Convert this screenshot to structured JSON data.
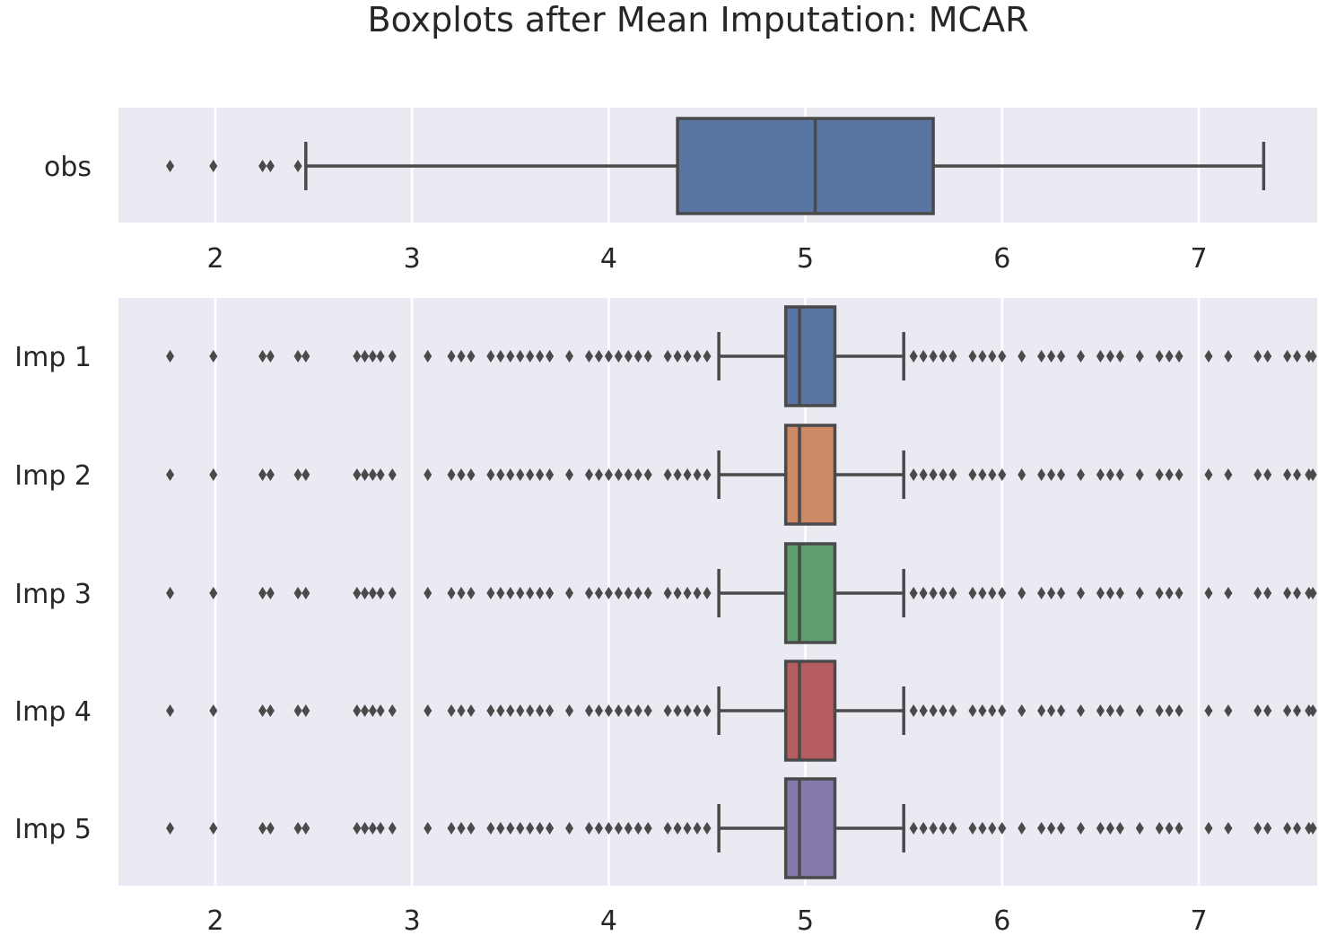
{
  "title": "Boxplots after Mean Imputation: MCAR",
  "colors": {
    "panel_bg": "#EAEAF2",
    "grid": "#FFFFFF",
    "edge": "#4A4A4A",
    "blue": "#5875A4",
    "orange": "#CC8963",
    "green": "#5F9E6E",
    "red": "#B55D60",
    "purple": "#857AAB"
  },
  "chart_data": [
    {
      "type": "boxplot",
      "orientation": "horizontal",
      "xlim": [
        1.5,
        7.6
      ],
      "xticks": [
        "2",
        "3",
        "4",
        "5",
        "6",
        "7"
      ],
      "xtick_values": [
        2,
        3,
        4,
        5,
        6,
        7
      ],
      "grid": true,
      "series": [
        {
          "name": "obs",
          "color": "#5875A4",
          "whisker_low": 2.46,
          "q1": 4.35,
          "median": 5.05,
          "q3": 5.65,
          "whisker_high": 7.33,
          "outliers": [
            1.77,
            1.99,
            2.24,
            2.28,
            2.42
          ]
        }
      ]
    },
    {
      "type": "boxplot",
      "orientation": "horizontal",
      "xlim": [
        1.5,
        7.6
      ],
      "xticks": [
        "2",
        "3",
        "4",
        "5",
        "6",
        "7"
      ],
      "xtick_values": [
        2,
        3,
        4,
        5,
        6,
        7
      ],
      "grid": true,
      "series": [
        {
          "name": "Imp 1",
          "color": "#5875A4",
          "whisker_low": 4.56,
          "q1": 4.9,
          "median": 4.97,
          "q3": 5.15,
          "whisker_high": 5.5,
          "outliers": [
            1.77,
            1.99,
            2.24,
            2.28,
            2.42,
            2.46,
            2.72,
            2.76,
            2.8,
            2.84,
            2.9,
            3.08,
            3.2,
            3.25,
            3.3,
            3.4,
            3.45,
            3.5,
            3.55,
            3.6,
            3.65,
            3.7,
            3.8,
            3.9,
            3.95,
            4.0,
            4.05,
            4.1,
            4.15,
            4.2,
            4.3,
            4.35,
            4.4,
            4.45,
            4.5,
            5.55,
            5.6,
            5.65,
            5.7,
            5.75,
            5.85,
            5.9,
            5.95,
            6.0,
            6.1,
            6.2,
            6.25,
            6.3,
            6.4,
            6.5,
            6.55,
            6.6,
            6.7,
            6.8,
            6.85,
            6.9,
            7.05,
            7.15,
            7.3,
            7.35,
            7.45,
            7.5,
            7.56,
            7.58
          ]
        },
        {
          "name": "Imp 2",
          "color": "#CC8963",
          "whisker_low": 4.56,
          "q1": 4.9,
          "median": 4.97,
          "q3": 5.15,
          "whisker_high": 5.5,
          "outliers": [
            1.77,
            1.99,
            2.24,
            2.28,
            2.42,
            2.46,
            2.72,
            2.76,
            2.8,
            2.84,
            2.9,
            3.08,
            3.2,
            3.25,
            3.3,
            3.4,
            3.45,
            3.5,
            3.55,
            3.6,
            3.65,
            3.7,
            3.8,
            3.9,
            3.95,
            4.0,
            4.05,
            4.1,
            4.15,
            4.2,
            4.3,
            4.35,
            4.4,
            4.45,
            4.5,
            5.55,
            5.6,
            5.65,
            5.7,
            5.75,
            5.85,
            5.9,
            5.95,
            6.0,
            6.1,
            6.2,
            6.25,
            6.3,
            6.4,
            6.5,
            6.55,
            6.6,
            6.7,
            6.8,
            6.85,
            6.9,
            7.05,
            7.15,
            7.3,
            7.35,
            7.45,
            7.5,
            7.56,
            7.58
          ]
        },
        {
          "name": "Imp 3",
          "color": "#5F9E6E",
          "whisker_low": 4.56,
          "q1": 4.9,
          "median": 4.97,
          "q3": 5.15,
          "whisker_high": 5.5,
          "outliers": [
            1.77,
            1.99,
            2.24,
            2.28,
            2.42,
            2.46,
            2.72,
            2.76,
            2.8,
            2.84,
            2.9,
            3.08,
            3.2,
            3.25,
            3.3,
            3.4,
            3.45,
            3.5,
            3.55,
            3.6,
            3.65,
            3.7,
            3.8,
            3.9,
            3.95,
            4.0,
            4.05,
            4.1,
            4.15,
            4.2,
            4.3,
            4.35,
            4.4,
            4.45,
            4.5,
            5.55,
            5.6,
            5.65,
            5.7,
            5.75,
            5.85,
            5.9,
            5.95,
            6.0,
            6.1,
            6.2,
            6.25,
            6.3,
            6.4,
            6.5,
            6.55,
            6.6,
            6.7,
            6.8,
            6.85,
            6.9,
            7.05,
            7.15,
            7.3,
            7.35,
            7.45,
            7.5,
            7.56,
            7.58
          ]
        },
        {
          "name": "Imp 4",
          "color": "#B55D60",
          "whisker_low": 4.56,
          "q1": 4.9,
          "median": 4.97,
          "q3": 5.15,
          "whisker_high": 5.5,
          "outliers": [
            1.77,
            1.99,
            2.24,
            2.28,
            2.42,
            2.46,
            2.72,
            2.76,
            2.8,
            2.84,
            2.9,
            3.08,
            3.2,
            3.25,
            3.3,
            3.4,
            3.45,
            3.5,
            3.55,
            3.6,
            3.65,
            3.7,
            3.8,
            3.9,
            3.95,
            4.0,
            4.05,
            4.1,
            4.15,
            4.2,
            4.3,
            4.35,
            4.4,
            4.45,
            4.5,
            5.55,
            5.6,
            5.65,
            5.7,
            5.75,
            5.85,
            5.9,
            5.95,
            6.0,
            6.1,
            6.2,
            6.25,
            6.3,
            6.4,
            6.5,
            6.55,
            6.6,
            6.7,
            6.8,
            6.85,
            6.9,
            7.05,
            7.15,
            7.3,
            7.35,
            7.45,
            7.5,
            7.56,
            7.58
          ]
        },
        {
          "name": "Imp 5",
          "color": "#857AAB",
          "whisker_low": 4.56,
          "q1": 4.9,
          "median": 4.97,
          "q3": 5.15,
          "whisker_high": 5.5,
          "outliers": [
            1.77,
            1.99,
            2.24,
            2.28,
            2.42,
            2.46,
            2.72,
            2.76,
            2.8,
            2.84,
            2.9,
            3.08,
            3.2,
            3.25,
            3.3,
            3.4,
            3.45,
            3.5,
            3.55,
            3.6,
            3.65,
            3.7,
            3.8,
            3.9,
            3.95,
            4.0,
            4.05,
            4.1,
            4.15,
            4.2,
            4.3,
            4.35,
            4.4,
            4.45,
            4.5,
            5.55,
            5.6,
            5.65,
            5.7,
            5.75,
            5.85,
            5.9,
            5.95,
            6.0,
            6.1,
            6.2,
            6.25,
            6.3,
            6.4,
            6.5,
            6.55,
            6.6,
            6.7,
            6.8,
            6.85,
            6.9,
            7.05,
            7.15,
            7.3,
            7.35,
            7.45,
            7.5,
            7.56,
            7.58
          ]
        }
      ]
    }
  ]
}
